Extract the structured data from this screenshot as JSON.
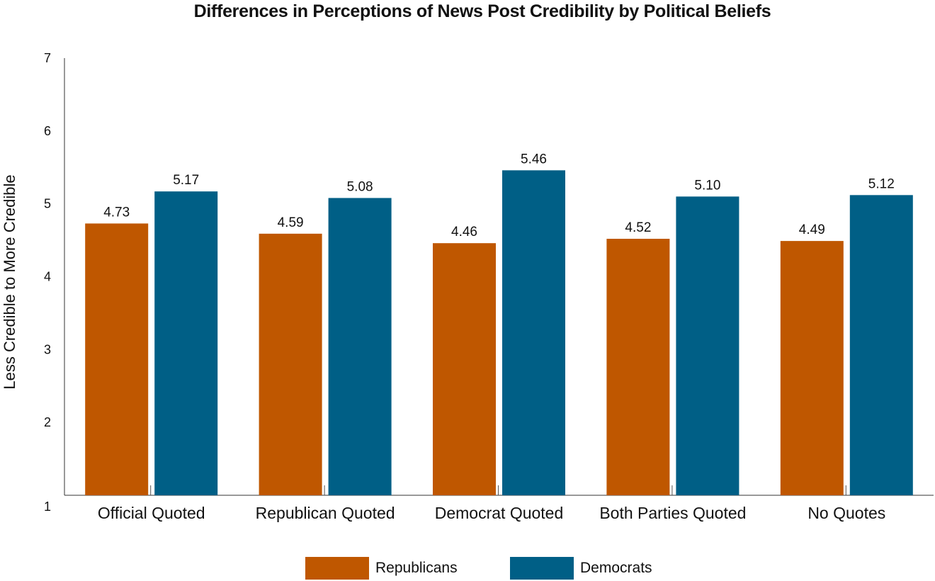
{
  "chart_data": {
    "type": "bar",
    "title": "Differences in Perceptions of News Post Credibility by Political Beliefs",
    "xlabel": "",
    "ylabel": "Less Credible to More Credible",
    "ylim": [
      1,
      7
    ],
    "yticks": [
      "1",
      "2",
      "3",
      "4",
      "5",
      "6",
      "7"
    ],
    "categories": [
      "Official Quoted",
      "Republican Quoted",
      "Democrat Quoted",
      "Both Parties Quoted",
      "No Quotes"
    ],
    "series": [
      {
        "name": "Republicans",
        "color": "#bf5700",
        "values": [
          4.73,
          4.59,
          4.46,
          4.52,
          4.49
        ],
        "labels": [
          "4.73",
          "4.59",
          "4.46",
          "4.52",
          "4.49"
        ]
      },
      {
        "name": "Democrats",
        "color": "#005f86",
        "values": [
          5.17,
          5.08,
          5.46,
          5.1,
          5.12
        ],
        "labels": [
          "5.17",
          "5.08",
          "5.46",
          "5.10",
          "5.12"
        ]
      }
    ],
    "legend": "bottom-center",
    "grid": false
  }
}
